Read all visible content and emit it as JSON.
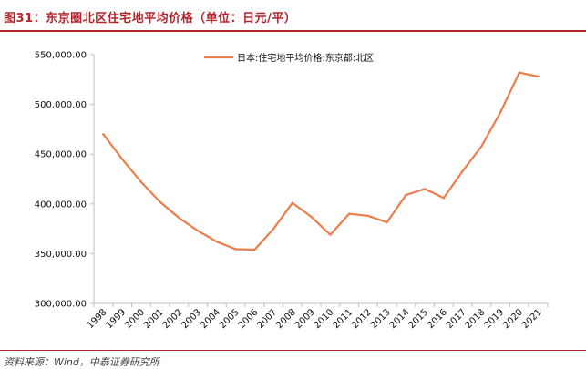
{
  "header": {
    "title": "图31：东京圈北区住宅地平均价格（单位：日元/平）"
  },
  "footer": {
    "source": "资料来源：Wind，中泰证券研究所"
  },
  "colors": {
    "accent": "#b3252c",
    "series_line": "#ed7d4a",
    "axis": "#bfbfbf"
  },
  "chart_data": {
    "type": "line",
    "title": "",
    "xlabel": "",
    "ylabel": "",
    "x": [
      "1998",
      "1999",
      "2000",
      "2001",
      "2002",
      "2003",
      "2004",
      "2005",
      "2006",
      "2007",
      "2008",
      "2009",
      "2010",
      "2011",
      "2012",
      "2013",
      "2014",
      "2015",
      "2016",
      "2017",
      "2018",
      "2019",
      "2020",
      "2021"
    ],
    "series": [
      {
        "name": "日本:住宅地平均价格:东京都:北区",
        "values": [
          470000,
          445000,
          422000,
          402000,
          386000,
          373000,
          362000,
          354500,
          354000,
          375000,
          401000,
          387000,
          369000,
          390000,
          388000,
          381500,
          409000,
          415000,
          406000,
          433000,
          458000,
          492000,
          532000,
          528000
        ]
      }
    ],
    "ylim": [
      300000,
      550000
    ],
    "yticks": [
      "300,000.00",
      "350,000.00",
      "400,000.00",
      "450,000.00",
      "500,000.00",
      "550,000.00"
    ],
    "ytick_values": [
      300000,
      350000,
      400000,
      450000,
      500000,
      550000
    ],
    "grid": false,
    "legend_position": "top-center"
  }
}
